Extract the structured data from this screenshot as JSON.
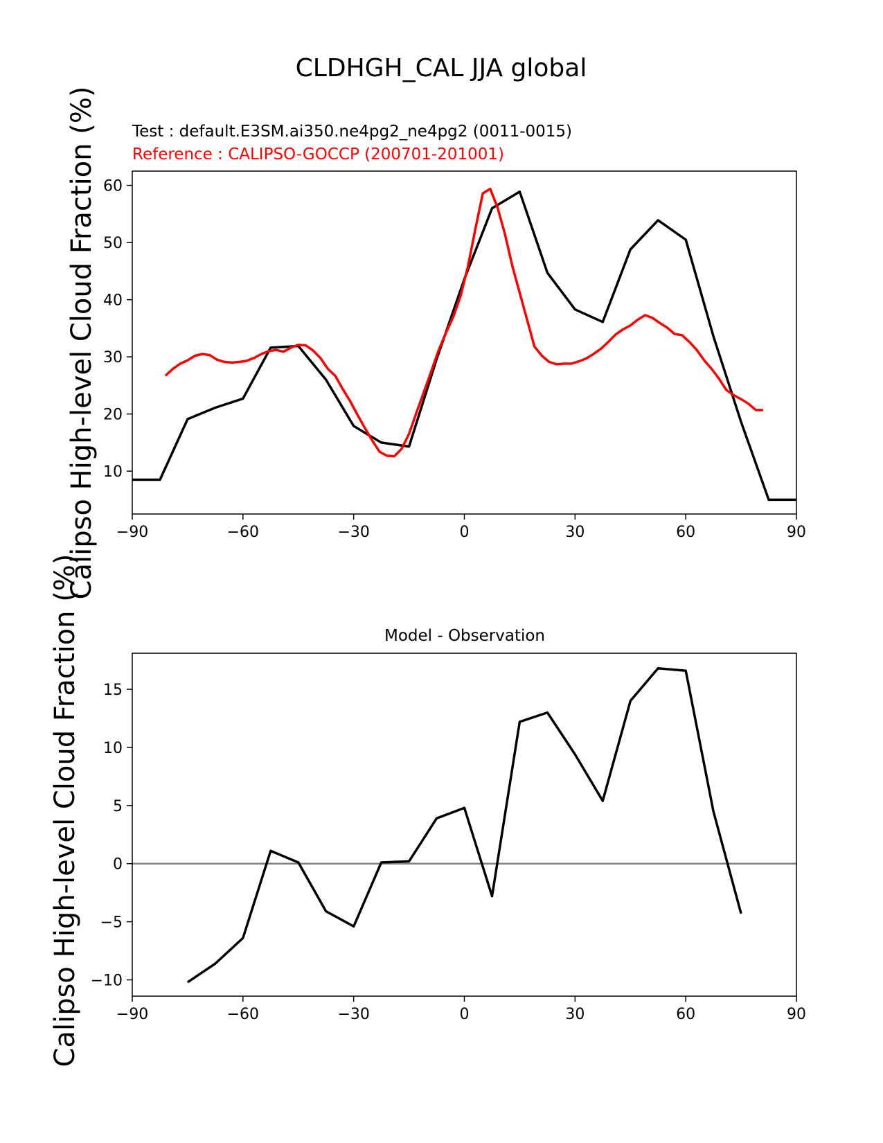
{
  "title": "CLDHGH_CAL JJA global",
  "colors": {
    "test": "#000000",
    "reference": "#ff0000",
    "zero_line": "#808080",
    "axes": "#000000"
  },
  "chart_data": [
    {
      "type": "line",
      "test_label": "Test : default.E3SM.ai350.ne4pg2_ne4pg2 (0011-0015)",
      "reference_label": "Reference : CALIPSO-GOCCP (200701-201001)",
      "ylabel": "Calipso High-level Cloud Fraction (%)",
      "xlim": [
        -90,
        90
      ],
      "ylim": [
        2.5,
        62.5
      ],
      "xticks": [
        -90,
        -60,
        -30,
        0,
        30,
        60,
        90
      ],
      "yticks": [
        10,
        20,
        30,
        40,
        50,
        60
      ],
      "series": [
        {
          "role": "test",
          "x": [
            -90,
            -82.5,
            -75,
            -67.5,
            -60,
            -52.5,
            -45,
            -37.5,
            -30,
            -22.5,
            -15,
            -7.5,
            0,
            7.5,
            15,
            22.5,
            30,
            37.5,
            45,
            52.5,
            60,
            67.5,
            75,
            82.5,
            90
          ],
          "y": [
            8.5,
            8.5,
            19.1,
            21.1,
            22.7,
            31.6,
            31.9,
            26.0,
            17.9,
            15.0,
            14.3,
            29.6,
            43.6,
            56.0,
            58.9,
            44.7,
            38.3,
            36.1,
            48.8,
            53.9,
            50.5,
            33.6,
            18.6,
            5.0,
            5.0
          ]
        },
        {
          "role": "reference",
          "x": [
            -81,
            -79,
            -77,
            -75,
            -73,
            -71,
            -69,
            -67,
            -65,
            -63,
            -61,
            -59,
            -57,
            -55,
            -53,
            -51,
            -49,
            -47,
            -45,
            -43,
            -41,
            -39,
            -37,
            -35,
            -33,
            -31,
            -29,
            -27,
            -25,
            -23,
            -21,
            -19,
            -17,
            -15,
            -13,
            -11,
            -9,
            -7,
            -5,
            -3,
            -1,
            1,
            3,
            5,
            7,
            9,
            11,
            13,
            15,
            17,
            19,
            21,
            23,
            25,
            27,
            29,
            31,
            33,
            35,
            37,
            39,
            41,
            43,
            45,
            47,
            49,
            51,
            53,
            55,
            57,
            59,
            61,
            63,
            65,
            67,
            69,
            71,
            73,
            75,
            77,
            79,
            81
          ],
          "y": [
            26.7,
            27.9,
            28.8,
            29.4,
            30.2,
            30.5,
            30.3,
            29.5,
            29.1,
            29.0,
            29.1,
            29.3,
            29.8,
            30.5,
            31.0,
            31.2,
            30.9,
            31.6,
            32.1,
            32.0,
            31.1,
            29.8,
            27.9,
            26.7,
            24.4,
            22.3,
            19.9,
            17.6,
            15.4,
            13.4,
            12.7,
            12.6,
            13.9,
            16.5,
            20.2,
            23.8,
            27.4,
            31.1,
            34.2,
            37.0,
            40.7,
            45.9,
            52.4,
            58.6,
            59.4,
            56.1,
            51.5,
            45.9,
            41.2,
            36.5,
            31.8,
            30.2,
            29.1,
            28.7,
            28.8,
            28.8,
            29.2,
            29.7,
            30.5,
            31.4,
            32.6,
            33.9,
            34.8,
            35.5,
            36.5,
            37.3,
            36.8,
            35.9,
            35.1,
            34.0,
            33.8,
            32.6,
            31.2,
            29.4,
            27.9,
            26.2,
            24.2,
            23.3,
            22.6,
            21.8,
            20.7,
            20.7
          ]
        }
      ]
    },
    {
      "type": "line",
      "title": "Model - Observation",
      "ylabel": "Calipso High-level Cloud Fraction (%)",
      "xlim": [
        -90,
        90
      ],
      "ylim": [
        -11.4,
        18.1
      ],
      "xticks": [
        -90,
        -60,
        -30,
        0,
        30,
        60,
        90
      ],
      "yticks": [
        -10,
        -5,
        0,
        5,
        10,
        15
      ],
      "zero_line": 0,
      "series": [
        {
          "role": "difference",
          "x": [
            -75,
            -67.5,
            -60,
            -52.5,
            -45,
            -37.5,
            -30,
            -22.5,
            -15,
            -7.5,
            0,
            7.5,
            15,
            22.5,
            30,
            37.5,
            45,
            52.5,
            60,
            67.5,
            75
          ],
          "y": [
            -10.2,
            -8.6,
            -6.4,
            1.1,
            0.1,
            -4.1,
            -5.4,
            0.1,
            0.2,
            3.9,
            4.8,
            -2.8,
            12.2,
            13.0,
            9.4,
            5.4,
            14.0,
            16.8,
            16.6,
            4.5,
            -4.3
          ]
        }
      ]
    }
  ]
}
